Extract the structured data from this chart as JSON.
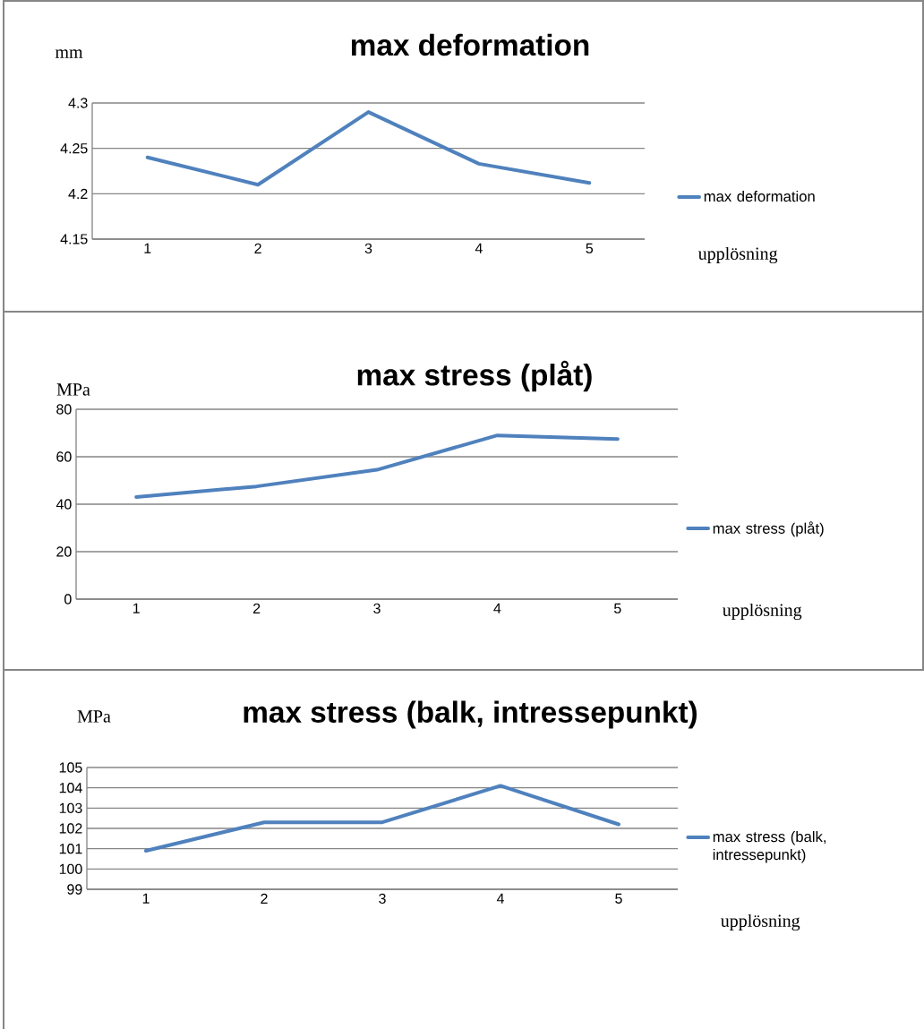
{
  "chart_data": [
    {
      "type": "line",
      "title": "max deformation",
      "ylabel": "mm",
      "xlabel": "upplösning",
      "categories": [
        "1",
        "2",
        "3",
        "4",
        "5"
      ],
      "series": [
        {
          "name": "max deformation",
          "color": "#4f81bd",
          "values": [
            4.24,
            4.21,
            4.29,
            4.233,
            4.212
          ]
        }
      ],
      "ylim": [
        4.15,
        4.3
      ],
      "yticks": [
        4.15,
        4.2,
        4.25,
        4.3
      ],
      "grid": "y",
      "legend": "right"
    },
    {
      "type": "line",
      "title": "max stress (plåt)",
      "ylabel": "MPa",
      "xlabel": "upplösning",
      "categories": [
        "1",
        "2",
        "3",
        "4",
        "5"
      ],
      "series": [
        {
          "name": "max stress (plåt)",
          "color": "#4f81bd",
          "values": [
            43,
            47.5,
            54.5,
            69,
            67.5
          ]
        }
      ],
      "ylim": [
        0,
        80
      ],
      "yticks": [
        0,
        20,
        40,
        60,
        80
      ],
      "grid": "y",
      "legend": "right"
    },
    {
      "type": "line",
      "title": "max stress (balk, intressepunkt)",
      "ylabel": "MPa",
      "xlabel": "upplösning",
      "categories": [
        "1",
        "2",
        "3",
        "4",
        "5"
      ],
      "series": [
        {
          "name": "max stress (balk, intressepunkt)",
          "color": "#4f81bd",
          "values": [
            100.9,
            102.3,
            102.3,
            104.1,
            102.2
          ]
        }
      ],
      "ylim": [
        99,
        105
      ],
      "yticks": [
        99,
        100,
        101,
        102,
        103,
        104,
        105
      ],
      "grid": "y",
      "legend": "right"
    }
  ]
}
